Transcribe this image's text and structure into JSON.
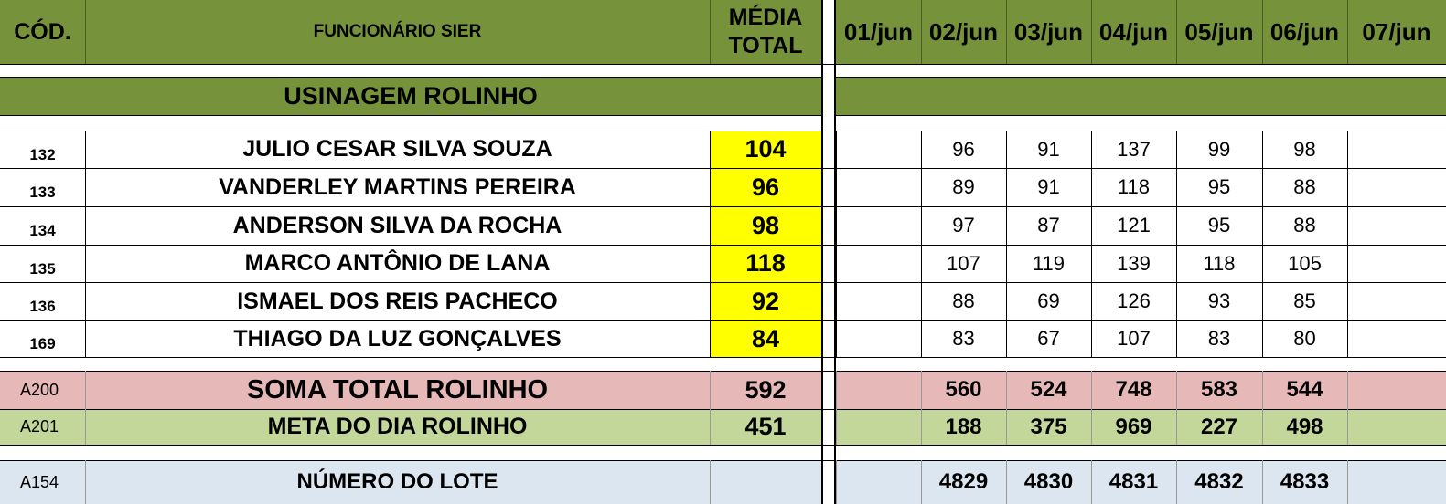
{
  "header": {
    "cod": "CÓD.",
    "funcionario": "FUNCIONÁRIO SIER",
    "media_line1": "MÉDIA",
    "media_line2": "TOTAL",
    "dates": [
      "01/jun",
      "02/jun",
      "03/jun",
      "04/jun",
      "05/jun",
      "06/jun",
      "07/jun"
    ]
  },
  "section": {
    "title": "USINAGEM ROLINHO"
  },
  "employees": [
    {
      "code": "132",
      "name": "JULIO CESAR SILVA SOUZA",
      "media": "104",
      "days": [
        "",
        "96",
        "91",
        "137",
        "99",
        "98",
        ""
      ]
    },
    {
      "code": "133",
      "name": "VANDERLEY MARTINS PEREIRA",
      "media": "96",
      "days": [
        "",
        "89",
        "91",
        "118",
        "95",
        "88",
        ""
      ]
    },
    {
      "code": "134",
      "name": "ANDERSON SILVA DA ROCHA",
      "media": "98",
      "days": [
        "",
        "97",
        "87",
        "121",
        "95",
        "88",
        ""
      ]
    },
    {
      "code": "135",
      "name": "MARCO ANTÔNIO DE LANA",
      "media": "118",
      "days": [
        "",
        "107",
        "119",
        "139",
        "118",
        "105",
        ""
      ]
    },
    {
      "code": "136",
      "name": "ISMAEL DOS REIS PACHECO",
      "media": "92",
      "days": [
        "",
        "88",
        "69",
        "126",
        "93",
        "85",
        ""
      ]
    },
    {
      "code": "169",
      "name": "THIAGO DA LUZ GONÇALVES",
      "media": "84",
      "days": [
        "",
        "83",
        "67",
        "107",
        "83",
        "80",
        ""
      ]
    }
  ],
  "soma": {
    "code": "A200",
    "label": "SOMA TOTAL ROLINHO",
    "media": "592",
    "days": [
      "",
      "560",
      "524",
      "748",
      "583",
      "544",
      ""
    ]
  },
  "meta": {
    "code": "A201",
    "label": "META DO DIA ROLINHO",
    "media": "451",
    "days": [
      "",
      "188",
      "375",
      "969",
      "227",
      "498",
      ""
    ]
  },
  "lote": {
    "code": "A154",
    "label": "NÚMERO DO LOTE",
    "days": [
      "",
      "4829",
      "4830",
      "4831",
      "4832",
      "4833",
      ""
    ]
  },
  "colors": {
    "header_green": "#76933c",
    "media_yellow": "#ffff00",
    "soma_pink": "#e6b8b7",
    "meta_green": "#c4d79b",
    "lote_blue": "#dce6f1"
  }
}
